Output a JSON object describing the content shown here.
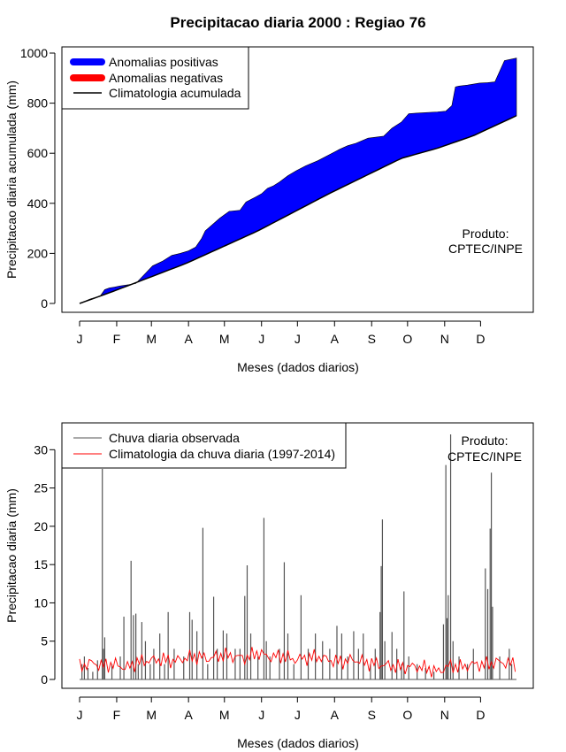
{
  "title": "Precipitacao diaria 2000 : Regiao 76",
  "chart_data": [
    {
      "type": "area",
      "ylabel": "Precipitacao diaria acumulada (mm)",
      "xlabel": "Meses (dados diarios)",
      "ylim": [
        0,
        1000
      ],
      "yticks": [
        0,
        200,
        400,
        600,
        800,
        1000
      ],
      "month_labels": [
        "J",
        "F",
        "M",
        "A",
        "M",
        "J",
        "J",
        "A",
        "S",
        "O",
        "N",
        "D"
      ],
      "month_days": [
        1,
        32,
        61,
        92,
        122,
        153,
        183,
        214,
        245,
        275,
        306,
        336
      ],
      "legend": [
        "Anomalias positivas",
        "Anomalias negativas",
        "Climatologia acumulada"
      ],
      "product_label": [
        "Produto:",
        "CPTEC/INPE"
      ],
      "colors": {
        "positive": "#0000ff",
        "negative": "#ff0000",
        "climatology": "#000000"
      },
      "series": [
        {
          "name": "Observada acumulada",
          "days": [
            1,
            10,
            18,
            22,
            26,
            30,
            35,
            42,
            48,
            55,
            62,
            70,
            78,
            85,
            92,
            98,
            103,
            106,
            112,
            118,
            126,
            135,
            140,
            148,
            153,
            158,
            163,
            168,
            175,
            182,
            190,
            200,
            210,
            218,
            225,
            232,
            242,
            250,
            255,
            262,
            270,
            276,
            282,
            290,
            300,
            307,
            312,
            315,
            318,
            325,
            335,
            342,
            348,
            356,
            366
          ],
          "values": [
            0,
            18,
            28,
            55,
            62,
            65,
            70,
            75,
            80,
            115,
            150,
            168,
            192,
            200,
            210,
            225,
            260,
            290,
            315,
            340,
            368,
            372,
            405,
            425,
            438,
            460,
            470,
            485,
            510,
            530,
            550,
            570,
            595,
            615,
            630,
            640,
            660,
            665,
            668,
            700,
            725,
            758,
            760,
            762,
            765,
            768,
            790,
            865,
            868,
            872,
            880,
            882,
            885,
            970,
            980
          ]
        },
        {
          "name": "Climatologia acumulada",
          "days": [
            1,
            30,
            60,
            90,
            120,
            150,
            180,
            210,
            240,
            270,
            300,
            330,
            366
          ],
          "values": [
            0,
            50,
            105,
            160,
            225,
            290,
            365,
            440,
            510,
            580,
            620,
            670,
            750
          ]
        }
      ]
    },
    {
      "type": "bar",
      "ylabel": "Precipitacao diaria (mm)",
      "xlabel": "Meses (dados diarios)",
      "ylim": [
        0,
        32
      ],
      "yticks": [
        0,
        5,
        10,
        15,
        20,
        25,
        30
      ],
      "month_labels": [
        "J",
        "F",
        "M",
        "A",
        "M",
        "J",
        "J",
        "A",
        "S",
        "O",
        "N",
        "D"
      ],
      "month_days": [
        1,
        32,
        61,
        92,
        122,
        153,
        183,
        214,
        245,
        275,
        306,
        336
      ],
      "legend": [
        "Chuva diaria observada",
        "Climatologia da chuva diaria (1997-2014)"
      ],
      "product_label": [
        "Produto:",
        "CPTEC/INPE"
      ],
      "colors": {
        "observed": "#555555",
        "climatology": "#ff0000"
      },
      "series": [
        {
          "name": "Chuva diaria observada",
          "points": [
            [
              3,
              2
            ],
            [
              5,
              3
            ],
            [
              8,
              1.5
            ],
            [
              12,
              1
            ],
            [
              16,
              2.5
            ],
            [
              20,
              27.5
            ],
            [
              21,
              4
            ],
            [
              22,
              5.5
            ],
            [
              28,
              2
            ],
            [
              35,
              3
            ],
            [
              38,
              8.2
            ],
            [
              44,
              15.5
            ],
            [
              46,
              8.4
            ],
            [
              48,
              8.6
            ],
            [
              50,
              2
            ],
            [
              53,
              7.5
            ],
            [
              56,
              5
            ],
            [
              60,
              2
            ],
            [
              63,
              4
            ],
            [
              68,
              6
            ],
            [
              72,
              2
            ],
            [
              75,
              8.8
            ],
            [
              80,
              4
            ],
            [
              88,
              3
            ],
            [
              93,
              8.8
            ],
            [
              95,
              7.8
            ],
            [
              99,
              6.3
            ],
            [
              104,
              19.8
            ],
            [
              108,
              2
            ],
            [
              113,
              10.8
            ],
            [
              116,
              4
            ],
            [
              121,
              6.4
            ],
            [
              124,
              6
            ],
            [
              131,
              4
            ],
            [
              135,
              4
            ],
            [
              139,
              10.9
            ],
            [
              141,
              14.9
            ],
            [
              144,
              6
            ],
            [
              150,
              3
            ],
            [
              155,
              21.1
            ],
            [
              157,
              5
            ],
            [
              160,
              3
            ],
            [
              168,
              4
            ],
            [
              172,
              15.3
            ],
            [
              175,
              6
            ],
            [
              180,
              2
            ],
            [
              186,
              11
            ],
            [
              192,
              4
            ],
            [
              198,
              6
            ],
            [
              204,
              5
            ],
            [
              210,
              4
            ],
            [
              216,
              7
            ],
            [
              220,
              6
            ],
            [
              225,
              3
            ],
            [
              230,
              6.3
            ],
            [
              234,
              4
            ],
            [
              238,
              6
            ],
            [
              244,
              2
            ],
            [
              248,
              4
            ],
            [
              252,
              8.8
            ],
            [
              253,
              14.8
            ],
            [
              254,
              20.9
            ],
            [
              256,
              5
            ],
            [
              262,
              6.2
            ],
            [
              266,
              4
            ],
            [
              270,
              2
            ],
            [
              272,
              11.5
            ],
            [
              276,
              3
            ],
            [
              283,
              2
            ],
            [
              290,
              1.5
            ],
            [
              297,
              1
            ],
            [
              305,
              7.2
            ],
            [
              307,
              28
            ],
            [
              308,
              8
            ],
            [
              309,
              11
            ],
            [
              311,
              32
            ],
            [
              313,
              5
            ],
            [
              318,
              3
            ],
            [
              325,
              2
            ],
            [
              330,
              4
            ],
            [
              340,
              14.5
            ],
            [
              342,
              11.8
            ],
            [
              344,
              19.7
            ],
            [
              345,
              27
            ],
            [
              346,
              9.5
            ],
            [
              352,
              3
            ],
            [
              360,
              4
            ],
            [
              362,
              2
            ]
          ]
        },
        {
          "name": "Climatologia da chuva diaria (1997-2014)",
          "days": [
            1,
            10,
            20,
            30,
            40,
            50,
            60,
            70,
            80,
            90,
            100,
            110,
            120,
            130,
            140,
            150,
            160,
            170,
            180,
            190,
            200,
            210,
            220,
            230,
            240,
            250,
            260,
            270,
            280,
            290,
            300,
            310,
            320,
            330,
            340,
            350,
            360,
            366
          ],
          "values": [
            1.6,
            2.2,
            1.8,
            2.0,
            1.5,
            2.3,
            2.5,
            2.6,
            2.4,
            2.8,
            3.0,
            2.7,
            3.2,
            3.0,
            2.8,
            3.5,
            2.9,
            3.1,
            2.6,
            2.8,
            3.0,
            2.5,
            2.3,
            2.6,
            2.2,
            2.0,
            1.8,
            1.6,
            1.7,
            1.5,
            1.0,
            1.8,
            1.6,
            2.0,
            1.9,
            2.3,
            2.1,
            2.0
          ]
        }
      ]
    }
  ]
}
